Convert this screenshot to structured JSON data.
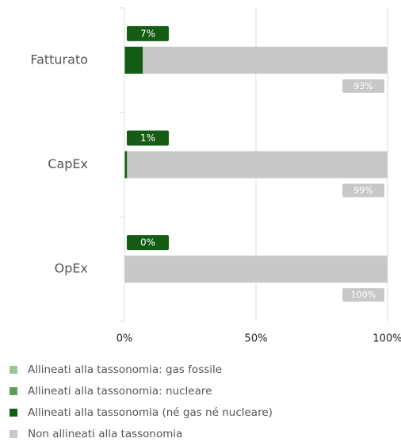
{
  "chart_data": {
    "type": "stacked-bar-horizontal",
    "categories": [
      "Fatturato",
      "CapEx",
      "OpEx"
    ],
    "series": [
      {
        "name": "Allineati alla tassonomia: gas fossile",
        "color": "#9cc79c",
        "values": [
          0,
          0,
          0
        ]
      },
      {
        "name": "Allineati alla tassonomia: nucleare",
        "color": "#5c9e5c",
        "values": [
          0,
          0,
          0
        ]
      },
      {
        "name": "Allineati alla tassonomia (né gas né nucleare)",
        "color": "#145c14",
        "values": [
          7,
          1,
          0
        ],
        "value_labels": [
          "7%",
          "1%",
          "0%"
        ]
      },
      {
        "name": "Non allineati alla tassonomia",
        "color": "#c8c8c8",
        "values": [
          93,
          99,
          100
        ],
        "value_labels": [
          "93%",
          "99%",
          "100%"
        ]
      }
    ],
    "xlim": [
      0,
      100
    ],
    "xticks": [
      {
        "value": 0,
        "label": "0%"
      },
      {
        "value": 50,
        "label": "50%"
      },
      {
        "value": 100,
        "label": "100%"
      }
    ],
    "grid": true
  }
}
